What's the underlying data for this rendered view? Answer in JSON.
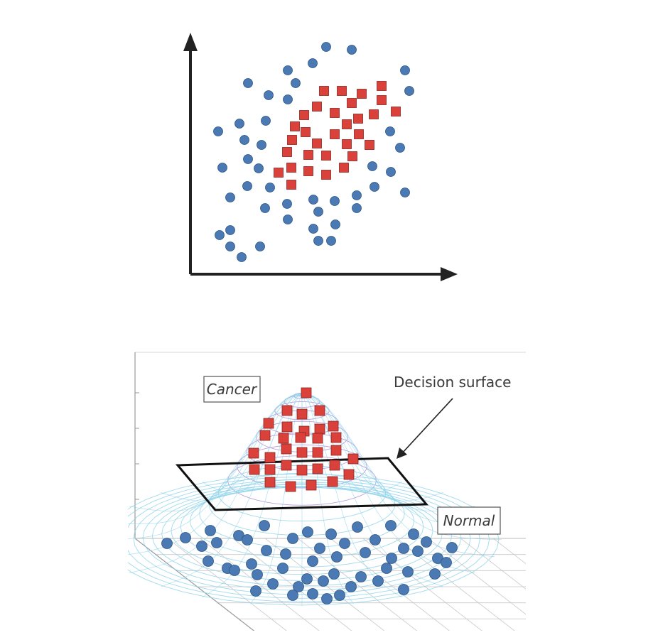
{
  "labels": {
    "cancer": "Cancer",
    "decision_surface": "Decision surface",
    "normal": "Normal"
  },
  "colors": {
    "circle": "#4a79b3",
    "circle_stroke": "#2d5583",
    "square": "#d9413a",
    "square_stroke": "#8a2420",
    "axis": "#222222",
    "mesh_purple": "#b48fd6",
    "mesh_cyan": "#8fd3ea",
    "grid": "#c8c8c8"
  },
  "icons": {
    "circle_marker": "filled-circle",
    "square_marker": "filled-square",
    "axis_arrow": "arrow-head"
  }
}
